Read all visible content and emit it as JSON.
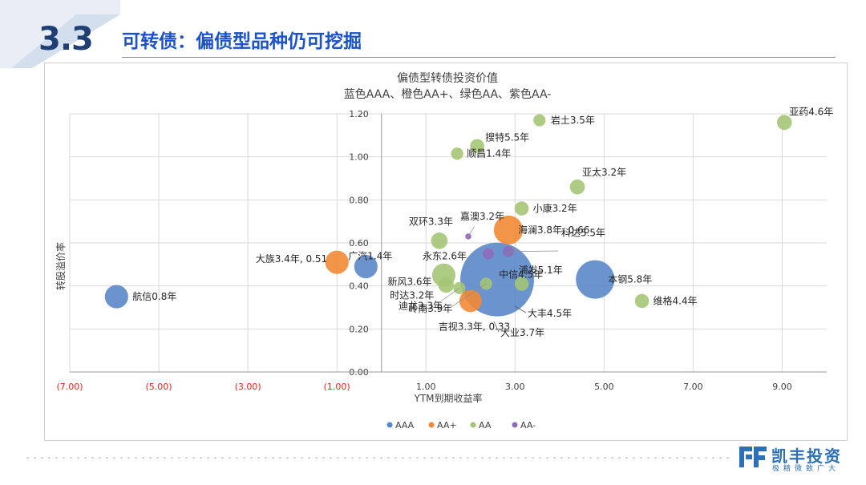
{
  "header": {
    "section_number": "3.3",
    "section_title": "可转债：偏债型品种仍可挖掘"
  },
  "brand": {
    "name": "凯丰投资",
    "slogan": "极精微致广大",
    "color": "#2f6fb5"
  },
  "chart_data": {
    "type": "bubble",
    "title": "偏债型转债投资价值",
    "subtitle": "蓝色AAA、橙色AA+、绿色AA、紫色AA-",
    "xlabel": "YTM到期收益率",
    "ylabel": "转股溢价率",
    "xlim": [
      -7,
      10
    ],
    "ylim": [
      0,
      1.2
    ],
    "x_ticks": [
      "(7.00)",
      "(5.00)",
      "(3.00)",
      "(1.00)",
      "1.00",
      "3.00",
      "5.00",
      "7.00",
      "9.00"
    ],
    "x_tick_values": [
      -7,
      -5,
      -3,
      -1,
      1,
      3,
      5,
      7,
      9
    ],
    "y_ticks": [
      "0.00",
      "0.20",
      "0.40",
      "0.60",
      "0.80",
      "1.00",
      "1.20"
    ],
    "y_tick_values": [
      0,
      0.2,
      0.4,
      0.6,
      0.8,
      1.0,
      1.2
    ],
    "grid": true,
    "negative_tick_color": "#e8231b",
    "legend_position": "bottom",
    "series": [
      {
        "name": "AAA",
        "color": "#5b87c9",
        "points": [
          {
            "label": "航信0.8年",
            "x": -5.95,
            "y": 0.35,
            "size": 2.2
          },
          {
            "label": "广汽1.4年",
            "x": -0.35,
            "y": 0.49,
            "size": 2.2
          },
          {
            "label": "中信4.5年",
            "x": 2.6,
            "y": 0.43,
            "size": 22
          },
          {
            "label": "本钢5.8年",
            "x": 4.8,
            "y": 0.43,
            "size": 6
          }
        ]
      },
      {
        "name": "AA+",
        "color": "#f28a35",
        "points": [
          {
            "label": "大族3.4年, 0.51",
            "x": -1.0,
            "y": 0.51,
            "size": 2.2
          },
          {
            "label": "海澜3.8年, 0.66",
            "x": 2.85,
            "y": 0.66,
            "size": 3.4
          },
          {
            "label": "吉视3.3年, 0.33",
            "x": 2.0,
            "y": 0.33,
            "size": 2
          }
        ]
      },
      {
        "name": "AA",
        "color": "#a4c576",
        "points": [
          {
            "label": "岩土3.5年",
            "x": 3.55,
            "y": 1.17,
            "size": 0.6
          },
          {
            "label": "亚药4.6年",
            "x": 9.05,
            "y": 1.16,
            "size": 0.9
          },
          {
            "label": "搜特5.5年",
            "x": 2.15,
            "y": 1.05,
            "size": 0.8
          },
          {
            "label": "顺昌1.4年",
            "x": 1.7,
            "y": 1.015,
            "size": 0.6
          },
          {
            "label": "亚太3.2年",
            "x": 4.4,
            "y": 0.86,
            "size": 0.9
          },
          {
            "label": "小康3.2年",
            "x": 3.15,
            "y": 0.76,
            "size": 0.8
          },
          {
            "label": "双环3.3年",
            "x": 1.3,
            "y": 0.61,
            "size": 1.1
          },
          {
            "label": "新风3.6年",
            "x": 1.4,
            "y": 0.45,
            "size": 2.2
          },
          {
            "label": "时达3.2年",
            "x": 1.45,
            "y": 0.405,
            "size": 1
          },
          {
            "label": "迪龙3.3年",
            "x": 1.75,
            "y": 0.39,
            "size": 0.6
          },
          {
            "label": "岭南3.9年",
            "x": 2.35,
            "y": 0.41,
            "size": 0.6
          },
          {
            "label": "浦发5.1年",
            "x": 3.15,
            "y": 0.41,
            "size": 0.8
          },
          {
            "label": "维格4.4年",
            "x": 5.85,
            "y": 0.33,
            "size": 0.8
          }
        ]
      },
      {
        "name": "AA-",
        "color": "#8e6bb8",
        "points": [
          {
            "label": "嘉澳3.2年",
            "x": 1.95,
            "y": 0.63,
            "size": 0.15
          },
          {
            "label": "科达5.5年",
            "x": 2.85,
            "y": 0.56,
            "size": 0.5
          },
          {
            "label": "永东2.6年",
            "x": 2.4,
            "y": 0.55,
            "size": 0.5
          }
        ]
      }
    ],
    "legend": [
      "AAA",
      "AA+",
      "AA",
      "AA-"
    ],
    "annotations": [
      "大丰4.5年",
      "大业3.7年"
    ]
  }
}
